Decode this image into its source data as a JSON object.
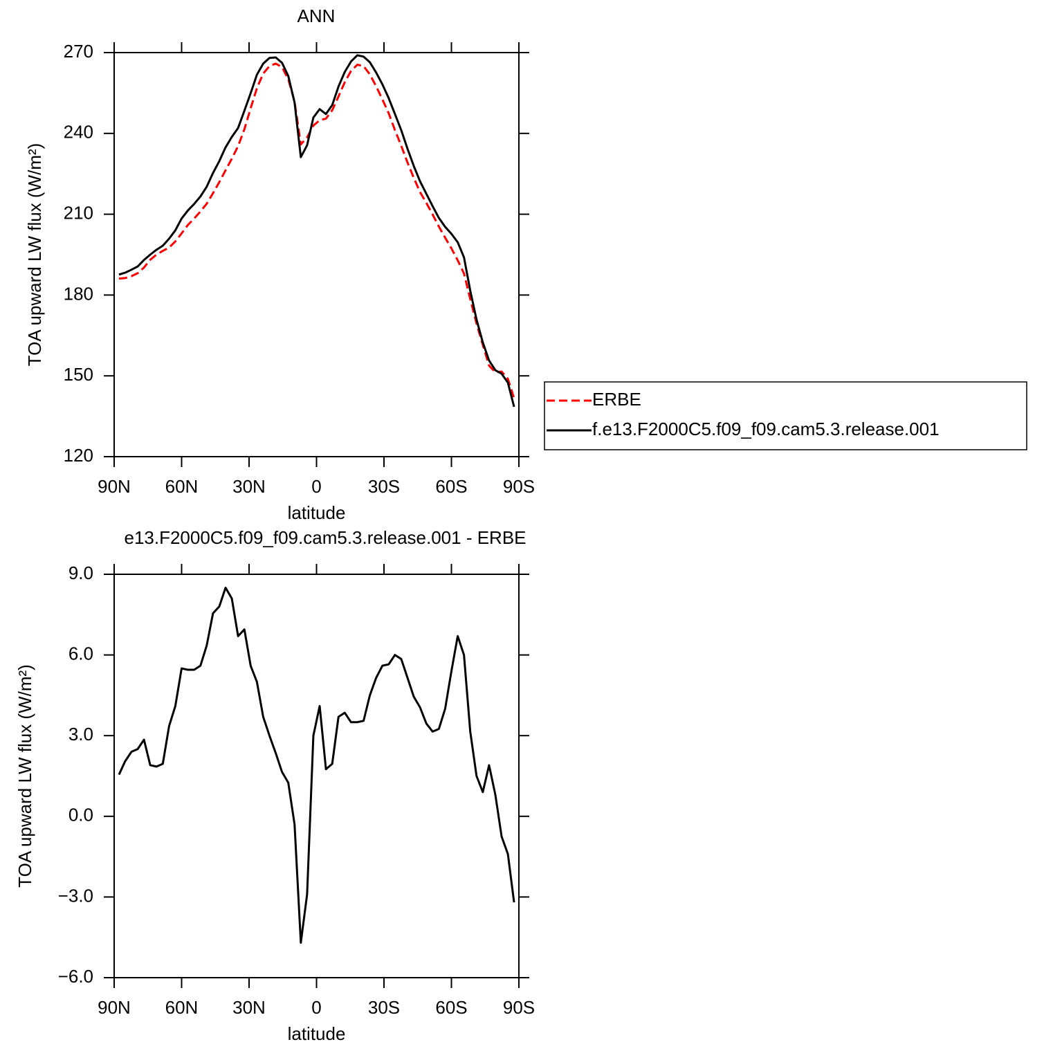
{
  "chart_data": [
    {
      "type": "line",
      "title": "ANN",
      "xlabel": "latitude",
      "ylabel": "TOA upward LW flux (W/m²)",
      "x": [
        87.86,
        85.1,
        82.31,
        79.53,
        76.74,
        73.95,
        71.16,
        68.37,
        65.58,
        62.79,
        60,
        57.21,
        54.42,
        51.63,
        48.84,
        46.04,
        43.25,
        40.46,
        37.67,
        34.88,
        32.09,
        29.3,
        26.51,
        23.72,
        20.93,
        18.14,
        15.35,
        12.56,
        9.77,
        6.98,
        4.19,
        1.4,
        -1.4,
        -4.19,
        -6.98,
        -9.77,
        -12.56,
        -15.35,
        -18.14,
        -20.93,
        -23.72,
        -26.51,
        -29.3,
        -32.09,
        -34.88,
        -37.67,
        -40.46,
        -43.25,
        -46.04,
        -48.84,
        -51.63,
        -54.42,
        -57.21,
        -60,
        -62.79,
        -65.58,
        -68.37,
        -71.16,
        -73.95,
        -76.74,
        -79.53,
        -82.31,
        -85.1,
        -87.86
      ],
      "series": [
        {
          "name": "ERBE",
          "color": "#ff0000",
          "line_style": "dashed",
          "values": [
            186.1,
            186.3,
            187.0,
            188.1,
            190.2,
            193.1,
            195.0,
            196.4,
            197.6,
            199.9,
            202.9,
            206.0,
            208.4,
            211.0,
            213.9,
            217.8,
            221.9,
            226.3,
            230.6,
            235.3,
            241.5,
            249.3,
            256.8,
            262.2,
            265.0,
            265.9,
            264.6,
            260.1,
            251.8,
            235.9,
            238.5,
            242.9,
            244.9,
            245.5,
            248.6,
            253.7,
            259.0,
            263.2,
            265.5,
            265.0,
            261.9,
            257.5,
            252.6,
            247.5,
            241.2,
            235.4,
            229.2,
            223.5,
            218.2,
            214.2,
            209.9,
            205.4,
            201.3,
            197.3,
            192.9,
            188.0,
            178.5,
            169.4,
            161.5,
            153.8,
            151.3,
            151.6,
            148.9,
            141.7
          ]
        },
        {
          "name": "f.e13.F2000C5.f09_f09.cam5.3.release.001",
          "color": "#000000",
          "line_style": "solid",
          "values": [
            187.6,
            188.3,
            189.4,
            190.6,
            193,
            195,
            196.8,
            198.3,
            200.9,
            204,
            208.4,
            211.4,
            213.8,
            216.6,
            220.2,
            225.3,
            229.7,
            234.8,
            238.7,
            242,
            248.4,
            254.9,
            261.8,
            265.9,
            268,
            268.2,
            266.2,
            261.3,
            251.5,
            231.2,
            235.6,
            245.9,
            249,
            247.2,
            250.5,
            257.4,
            262.8,
            266.7,
            269,
            268.5,
            266.4,
            262.6,
            258.2,
            253.1,
            247.2,
            241.2,
            234.3,
            227.9,
            222.2,
            217.6,
            213,
            208.6,
            205.3,
            202.7,
            199.6,
            194,
            181.6,
            170.9,
            162.4,
            155.7,
            152.1,
            150.8,
            147.5,
            138.5
          ]
        }
      ],
      "xlim": [
        90,
        -90
      ],
      "xticks": [
        {
          "value": 90,
          "label": "90N"
        },
        {
          "value": 60,
          "label": "60N"
        },
        {
          "value": 30,
          "label": "30N"
        },
        0,
        {
          "value": -30,
          "label": "30S"
        },
        {
          "value": -60,
          "label": "60S"
        },
        {
          "value": -90,
          "label": "90S"
        }
      ],
      "ylim": [
        120,
        270
      ],
      "yticks": [
        120,
        150,
        180,
        210,
        240,
        270
      ],
      "legend": "right"
    },
    {
      "type": "line",
      "title": "e13.F2000C5.f09_f09.cam5.3.release.001 - ERBE",
      "xlabel": "latitude",
      "ylabel": "TOA upward LW flux (W/m²)",
      "x": [
        87.86,
        85.1,
        82.31,
        79.53,
        76.74,
        73.95,
        71.16,
        68.37,
        65.58,
        62.79,
        60,
        57.21,
        54.42,
        51.63,
        48.84,
        46.04,
        43.25,
        40.46,
        37.67,
        34.88,
        32.09,
        29.3,
        26.51,
        23.72,
        20.93,
        18.14,
        15.35,
        12.56,
        9.77,
        6.98,
        4.19,
        1.4,
        -1.4,
        -4.19,
        -6.98,
        -9.77,
        -12.56,
        -15.35,
        -18.14,
        -20.93,
        -23.72,
        -26.51,
        -29.3,
        -32.09,
        -34.88,
        -37.67,
        -40.46,
        -43.25,
        -46.04,
        -48.84,
        -51.63,
        -54.42,
        -57.21,
        -60,
        -62.79,
        -65.58,
        -68.37,
        -71.16,
        -73.95,
        -76.74,
        -79.53,
        -82.31,
        -85.1,
        -87.86
      ],
      "values": [
        1.55,
        2.05,
        2.4,
        2.5,
        2.85,
        1.9,
        1.85,
        1.95,
        3.35,
        4.1,
        5.5,
        5.45,
        5.45,
        5.6,
        6.35,
        7.55,
        7.8,
        8.5,
        8.1,
        6.7,
        6.95,
        5.6,
        5.0,
        3.7,
        3.0,
        2.35,
        1.65,
        1.25,
        -0.3,
        -4.7,
        -2.9,
        3.0,
        4.1,
        1.75,
        1.95,
        3.7,
        3.85,
        3.5,
        3.5,
        3.55,
        4.5,
        5.15,
        5.6,
        5.65,
        6.0,
        5.85,
        5.15,
        4.45,
        4.05,
        3.45,
        3.15,
        3.25,
        4.0,
        5.4,
        6.7,
        6.0,
        3.15,
        1.5,
        0.9,
        1.9,
        0.8,
        -0.75,
        -1.4,
        -3.2
      ],
      "color": "#000000",
      "xlim": [
        90,
        -90
      ],
      "xticks": [
        {
          "value": 90,
          "label": "90N"
        },
        {
          "value": 60,
          "label": "60N"
        },
        {
          "value": 30,
          "label": "30N"
        },
        0,
        {
          "value": -30,
          "label": "30S"
        },
        {
          "value": -60,
          "label": "60S"
        },
        {
          "value": -90,
          "label": "90S"
        }
      ],
      "ylim": [
        -6,
        9
      ],
      "yticks": [
        {
          "value": -6,
          "label": "−6.0"
        },
        {
          "value": -3,
          "label": "−3.0"
        },
        {
          "value": 0,
          "label": "0.0"
        },
        {
          "value": 3,
          "label": "3.0"
        },
        {
          "value": 6,
          "label": "6.0"
        },
        {
          "value": 9,
          "label": "9.0"
        }
      ]
    }
  ]
}
